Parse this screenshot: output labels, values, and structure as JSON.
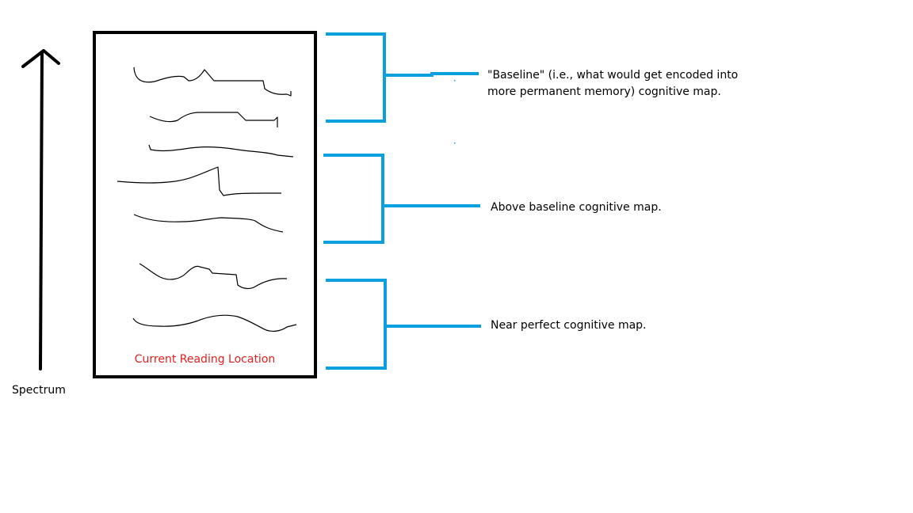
{
  "diagram": {
    "spectrum_label": "Spectrum",
    "reading_box_label": "Current Reading Location",
    "brackets": [
      {
        "id": "baseline",
        "label_lines": [
          "\"Baseline\" (i.e., what would get encoded into",
          "more permanent memory) cognitive map."
        ]
      },
      {
        "id": "above-baseline",
        "label_lines": [
          "Above baseline cognitive map."
        ]
      },
      {
        "id": "near-perfect",
        "label_lines": [
          "Near perfect cognitive map."
        ]
      }
    ],
    "colors": {
      "arrow": "#000000",
      "box_border": "#000000",
      "brackets": "#0aa0e0",
      "reading_label": "#e0201f",
      "scribbles": "#000000"
    },
    "icons": {
      "spectrum_arrow": "up-arrow-icon"
    }
  }
}
